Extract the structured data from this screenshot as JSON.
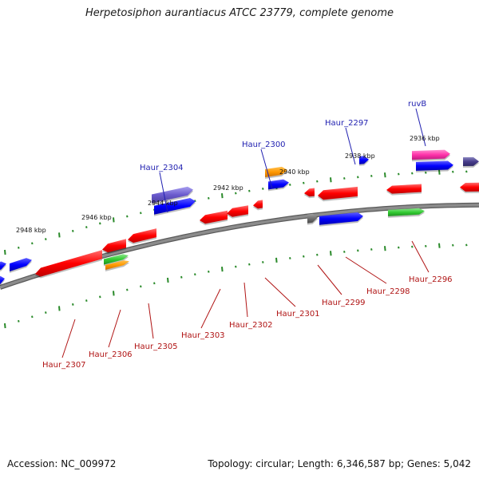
{
  "title": "Herpetosiphon aurantiacus ATCC 23779, complete genome",
  "footer": {
    "accession_label": "Accession:",
    "accession": "NC_009972",
    "topology_label": "Topology:",
    "topology": "circular",
    "length_label": "Length:",
    "length": "6,346,587 bp",
    "genes_label": "Genes:",
    "genes": "5,042"
  },
  "colors": {
    "backbone": "#8c8c8c",
    "scale_dots": "#2a8a2a",
    "top_label": "#1f1fb0",
    "bottom_label": "#b01414"
  },
  "scale_labels": [
    "2948 kbp",
    "2946 kbp",
    "2944 kbp",
    "2942 kbp",
    "2940 kbp",
    "2938 kbp",
    "2936 kbp"
  ],
  "genes_top": [
    "Haur_2304",
    "Haur_2300",
    "Haur_2297",
    "ruvB"
  ],
  "genes_bottom": [
    "Haur_2307",
    "Haur_2306",
    "Haur_2305",
    "Haur_2303",
    "Haur_2302",
    "Haur_2301",
    "Haur_2299",
    "Haur_2298",
    "Haur_2296"
  ]
}
